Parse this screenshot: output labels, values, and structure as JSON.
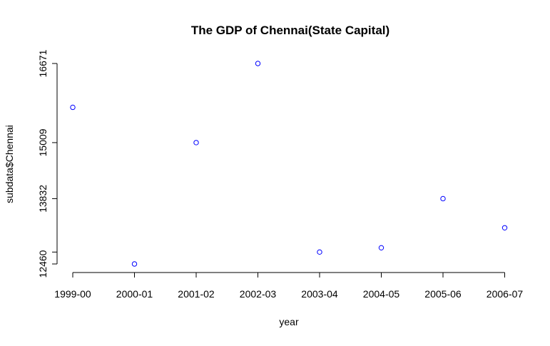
{
  "chart_data": {
    "type": "scatter",
    "title": "The GDP of Chennai(State Capital)",
    "xlabel": "year",
    "ylabel": "subdata$Chennai",
    "categories": [
      "1999-00",
      "2000-01",
      "2001-02",
      "2002-03",
      "2003-04",
      "2004-05",
      "2005-06",
      "2006-07"
    ],
    "values": [
      15750,
      12460,
      15009,
      16671,
      12710,
      12800,
      13832,
      13220
    ],
    "y_ticks": [
      12460,
      12710,
      13832,
      15009,
      16671
    ],
    "y_tick_labels": [
      "12460",
      "",
      "13832",
      "15009",
      "16671"
    ],
    "ylim": [
      12460,
      16671
    ],
    "grid": false,
    "point_style": "open-circle",
    "point_color": "#0000ff",
    "axis_color": "#000000"
  }
}
